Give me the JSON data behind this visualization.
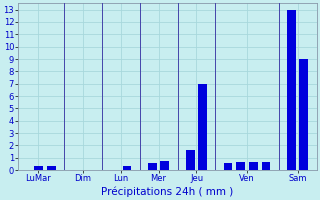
{
  "x_positions": [
    0,
    1,
    2,
    4,
    5,
    7,
    8,
    10,
    11,
    13,
    14,
    16,
    17,
    18,
    19,
    21,
    22
  ],
  "values": [
    0,
    0.3,
    0.3,
    0,
    0,
    0,
    0.35,
    0.55,
    0.75,
    1.6,
    7.0,
    0.55,
    0.65,
    0.65,
    0.65,
    13.0,
    9.0
  ],
  "bar_color": "#0000dd",
  "bg_color": "#c8eef0",
  "grid_color": "#a8d8dc",
  "tick_label_color": "#0000cc",
  "xlabel": "Précipitations 24h ( mm )",
  "xlabel_color": "#0000cc",
  "xlabel_fontsize": 7.5,
  "ylim_max": 13.5,
  "yticks": [
    0,
    1,
    2,
    3,
    4,
    5,
    6,
    7,
    8,
    9,
    10,
    11,
    12,
    13
  ],
  "group_labels": [
    "LuMar",
    "Dim",
    "Lun",
    "Mer",
    "Jeu",
    "Ven",
    "Sam"
  ],
  "group_centers": [
    1.0,
    4.5,
    7.5,
    10.5,
    13.5,
    17.5,
    21.5
  ],
  "xlim": [
    -0.6,
    23.0
  ],
  "bar_width": 0.7,
  "separator_positions": [
    3.0,
    6.0,
    9.0,
    12.0,
    15.0,
    20.0
  ],
  "separator_color": "#4444aa",
  "ytick_fontsize": 6,
  "xtick_fontsize": 6
}
